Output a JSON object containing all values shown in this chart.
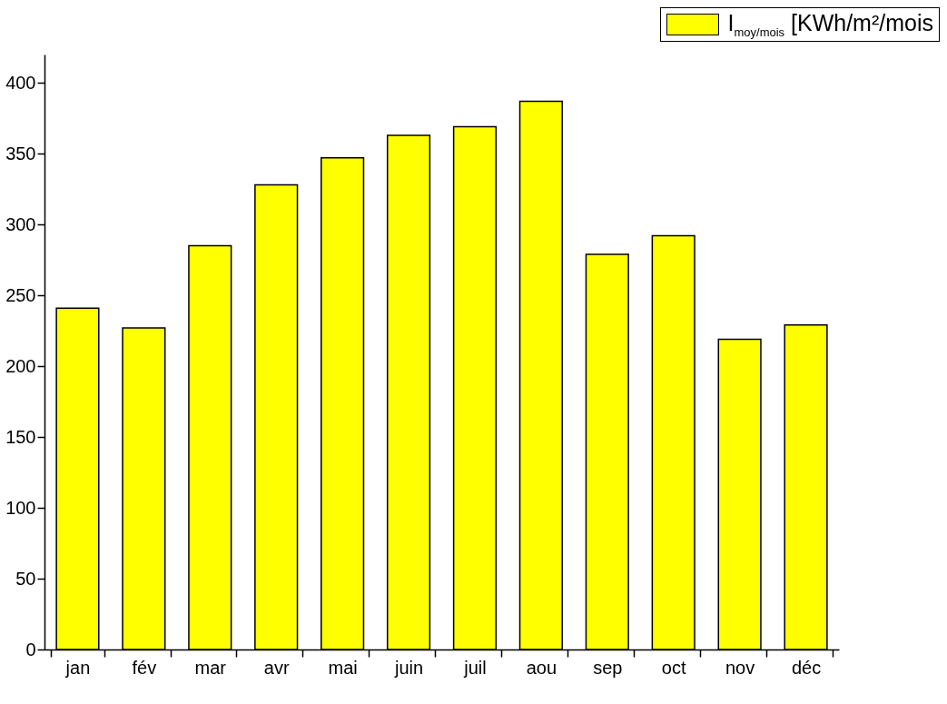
{
  "chart_data": {
    "type": "bar",
    "categories": [
      "jan",
      "fév",
      "mar",
      "avr",
      "mai",
      "juin",
      "juil",
      "aou",
      "sep",
      "oct",
      "nov",
      "déc"
    ],
    "series": [
      {
        "name": "I$_{moy/mois}$ [KWh/m²/mois",
        "color": "#ffff00",
        "values": [
          241,
          227,
          285,
          328,
          347,
          363,
          369,
          387,
          279,
          292,
          219,
          229
        ]
      }
    ],
    "ylim": [
      0,
      420
    ],
    "yticks": [
      0,
      50,
      100,
      150,
      200,
      250,
      300,
      350,
      400
    ],
    "grid": false,
    "legend": "top right"
  }
}
